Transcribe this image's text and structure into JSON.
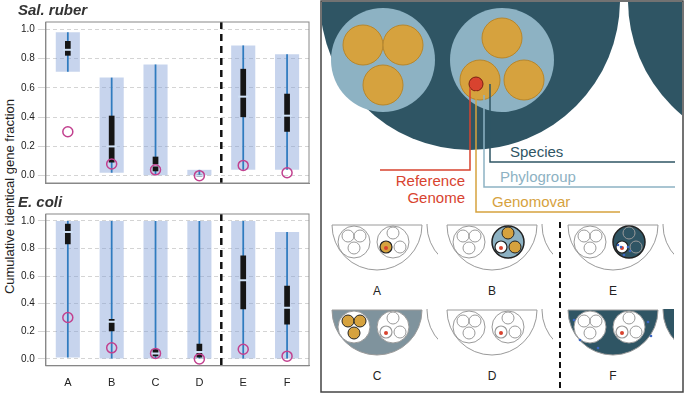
{
  "y_axis_label": "Cumulative identical gene fraction",
  "chart_data": [
    {
      "type": "violin",
      "title": "Sal. ruber",
      "categories": [
        "A",
        "B",
        "C",
        "D",
        "E",
        "F"
      ],
      "min": [
        0.71,
        0.02,
        0.0,
        0.0,
        0.04,
        0.04
      ],
      "q1": [
        0.82,
        0.09,
        0.03,
        0.0,
        0.4,
        0.3
      ],
      "median": [
        0.86,
        0.2,
        0.07,
        0.0,
        0.54,
        0.41
      ],
      "q3": [
        0.92,
        0.41,
        0.13,
        0.01,
        0.73,
        0.56
      ],
      "max": [
        0.98,
        0.67,
        0.76,
        0.04,
        0.89,
        0.83
      ],
      "reference": [
        0.3,
        0.08,
        0.04,
        0.0,
        0.07,
        0.02
      ],
      "color": "#2f7bbf",
      "ylim": [
        -0.05,
        1.05
      ],
      "yticks": [
        {
          "value": 0,
          "label": "0.0"
        },
        {
          "value": 0.2,
          "label": "0.2"
        },
        {
          "value": 0.4,
          "label": "0.4"
        },
        {
          "value": 0.6,
          "label": "0.6"
        },
        {
          "value": 0.8,
          "label": "0.8"
        },
        {
          "value": 1,
          "label": "1.0"
        }
      ],
      "grid": true,
      "tick_labels": "y"
    },
    {
      "type": "violin",
      "title": "E. coli",
      "categories": [
        "A",
        "B",
        "C",
        "D",
        "E",
        "F"
      ],
      "min": [
        0.01,
        0.0,
        0.0,
        0.0,
        0.0,
        0.0
      ],
      "q1": [
        0.83,
        0.2,
        0.02,
        0.01,
        0.36,
        0.25
      ],
      "median": [
        0.92,
        0.27,
        0.04,
        0.05,
        0.57,
        0.37
      ],
      "q3": [
        0.98,
        0.29,
        0.07,
        0.11,
        0.75,
        0.53
      ],
      "max": [
        1.0,
        1.0,
        1.0,
        1.0,
        1.0,
        0.92
      ],
      "reference": [
        0.3,
        0.08,
        0.04,
        0.0,
        0.07,
        0.02
      ],
      "color": "#2f7bbf",
      "ylim": [
        -0.05,
        1.05
      ],
      "yticks": [
        {
          "value": 0,
          "label": "0.0"
        },
        {
          "value": 0.2,
          "label": "0.2"
        },
        {
          "value": 0.4,
          "label": "0.4"
        },
        {
          "value": 0.6,
          "label": "0.6"
        },
        {
          "value": 0.8,
          "label": "0.8"
        },
        {
          "value": 1,
          "label": "1.0"
        }
      ],
      "grid": true
    }
  ],
  "diagram": {
    "labels": {
      "species": "Species",
      "phylogroup": "Phylogroup",
      "reference": "Reference Genome",
      "genomovar": "Genomovar"
    },
    "panels": [
      "A",
      "B",
      "E",
      "C",
      "D",
      "F"
    ]
  }
}
